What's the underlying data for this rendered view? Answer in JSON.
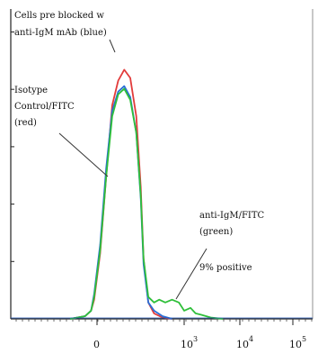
{
  "chart_data": {
    "type": "line",
    "title": "",
    "xlabel": "",
    "ylabel": "",
    "x_scale": "log (with linear region near 0)",
    "xlim": [
      -100,
      100000
    ],
    "ylim": [
      0,
      100
    ],
    "grid": false,
    "x_ticks": [
      {
        "value": 0,
        "base": "0",
        "exp": ""
      },
      {
        "value": 1000,
        "base": "10",
        "exp": "3"
      },
      {
        "value": 10000,
        "base": "10",
        "exp": "4"
      },
      {
        "value": 100000,
        "base": "10",
        "exp": "5"
      }
    ],
    "series": [
      {
        "name": "anti-IgM/FITC (green)",
        "color": "#2fbf3a",
        "points": [
          [
            -80,
            0
          ],
          [
            -30,
            1
          ],
          [
            -10,
            3
          ],
          [
            0,
            8
          ],
          [
            20,
            25
          ],
          [
            40,
            52
          ],
          [
            60,
            74
          ],
          [
            80,
            82
          ],
          [
            100,
            84
          ],
          [
            120,
            80
          ],
          [
            140,
            68
          ],
          [
            160,
            45
          ],
          [
            180,
            22
          ],
          [
            220,
            8
          ],
          [
            280,
            6
          ],
          [
            350,
            7
          ],
          [
            450,
            6
          ],
          [
            600,
            7
          ],
          [
            800,
            6
          ],
          [
            1000,
            3
          ],
          [
            1300,
            4
          ],
          [
            1600,
            2
          ],
          [
            2000,
            1.5
          ],
          [
            3000,
            0.5
          ],
          [
            5000,
            0
          ]
        ]
      },
      {
        "name": "Cells pre blocked w anti-IgM mAb (blue)",
        "color": "#2a6fd6",
        "points": [
          [
            -80,
            0
          ],
          [
            -30,
            1
          ],
          [
            -10,
            3
          ],
          [
            0,
            9
          ],
          [
            20,
            27
          ],
          [
            40,
            55
          ],
          [
            60,
            76
          ],
          [
            80,
            83
          ],
          [
            100,
            85
          ],
          [
            120,
            81
          ],
          [
            140,
            68
          ],
          [
            160,
            44
          ],
          [
            180,
            20
          ],
          [
            220,
            6
          ],
          [
            280,
            3
          ],
          [
            400,
            1
          ],
          [
            600,
            0
          ]
        ]
      },
      {
        "name": "Isotype Control/FITC (red)",
        "color": "#e23b3b",
        "points": [
          [
            -80,
            0
          ],
          [
            -30,
            1
          ],
          [
            -10,
            3
          ],
          [
            0,
            7
          ],
          [
            20,
            24
          ],
          [
            40,
            52
          ],
          [
            60,
            78
          ],
          [
            80,
            87
          ],
          [
            100,
            91
          ],
          [
            120,
            88
          ],
          [
            140,
            74
          ],
          [
            160,
            48
          ],
          [
            180,
            22
          ],
          [
            220,
            6
          ],
          [
            280,
            2
          ],
          [
            400,
            0.5
          ],
          [
            600,
            0
          ]
        ]
      }
    ],
    "annotations": [
      {
        "lines": [
          "Cells pre blocked w",
          "anti-IgM mAb (blue)"
        ]
      },
      {
        "lines": [
          "Isotype",
          "Control/FITC",
          "(red)"
        ]
      },
      {
        "lines": [
          "anti-IgM/FITC",
          "(green)"
        ]
      },
      {
        "lines": [
          "9% positive"
        ]
      }
    ]
  }
}
